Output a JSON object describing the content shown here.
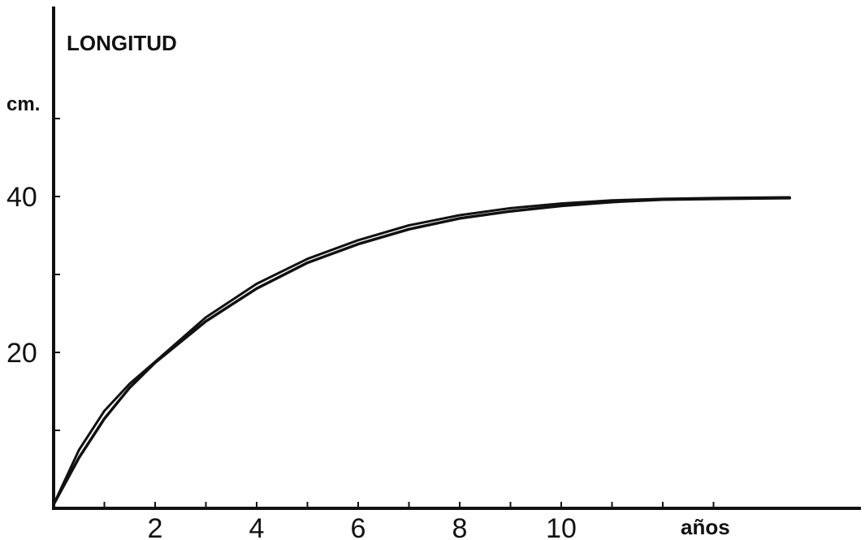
{
  "chart_data": {
    "type": "line",
    "title": "LONGITUD",
    "ylabel": "cm.",
    "xlabel": "años",
    "xlim": [
      0,
      16
    ],
    "ylim": [
      0,
      52
    ],
    "x_ticks": [
      2,
      4,
      6,
      8,
      10
    ],
    "x_minor_ticks": [
      1,
      3,
      5,
      7,
      9,
      11,
      12,
      13
    ],
    "y_ticks": [
      20,
      40
    ],
    "y_minor_ticks": [
      10,
      30,
      50
    ],
    "grid": false,
    "series": [
      {
        "x": [
          0,
          0.5,
          1,
          1.5,
          2,
          3,
          4,
          5,
          6,
          7,
          8,
          9,
          10,
          11,
          12,
          13,
          14.5
        ],
        "y": [
          0.5,
          7.5,
          12.5,
          16.0,
          18.8,
          24.5,
          28.8,
          32.0,
          34.4,
          36.3,
          37.6,
          38.5,
          39.1,
          39.5,
          39.7,
          39.8,
          39.9
        ]
      },
      {
        "x": [
          0,
          0.5,
          1,
          1.5,
          2,
          3,
          4,
          5,
          6,
          7,
          8,
          9,
          10,
          11,
          12,
          13,
          14.5
        ],
        "y": [
          0.5,
          6.5,
          11.5,
          15.5,
          18.7,
          24.0,
          28.2,
          31.5,
          33.9,
          35.8,
          37.2,
          38.1,
          38.8,
          39.3,
          39.6,
          39.7,
          39.8
        ]
      }
    ]
  }
}
